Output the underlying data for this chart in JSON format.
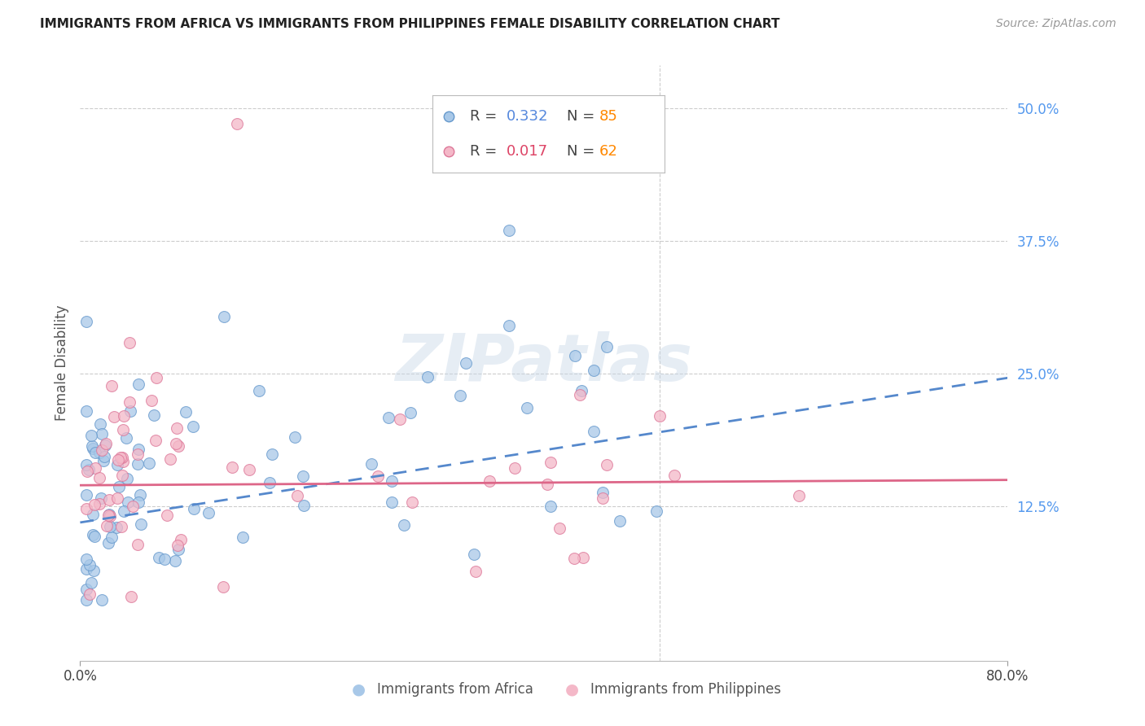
{
  "title": "IMMIGRANTS FROM AFRICA VS IMMIGRANTS FROM PHILIPPINES FEMALE DISABILITY CORRELATION CHART",
  "source": "Source: ZipAtlas.com",
  "ylabel": "Female Disability",
  "africa_color": "#a8c8e8",
  "africa_edge": "#6699cc",
  "philippines_color": "#f4b8c8",
  "philippines_edge": "#dd7799",
  "africa_R": 0.332,
  "africa_N": 85,
  "philippines_R": 0.017,
  "philippines_N": 62,
  "africa_line_color": "#5588cc",
  "africa_line_style": "--",
  "philippines_line_color": "#dd6688",
  "philippines_line_style": "-",
  "legend_R_color_africa": "#5588dd",
  "legend_N_color_africa": "#ff8800",
  "legend_R_color_philippines": "#dd4466",
  "legend_N_color_philippines": "#ff8800",
  "watermark": "ZIPatlas",
  "background_color": "#ffffff",
  "xlim": [
    0.0,
    0.8
  ],
  "ylim": [
    -0.02,
    0.54
  ],
  "y_ticks": [
    0.125,
    0.25,
    0.375,
    0.5
  ],
  "y_tick_labels": [
    "12.5%",
    "25.0%",
    "37.5%",
    "50.0%"
  ],
  "x_ticks": [
    0.0,
    0.8
  ],
  "x_tick_labels": [
    "0.0%",
    "80.0%"
  ]
}
